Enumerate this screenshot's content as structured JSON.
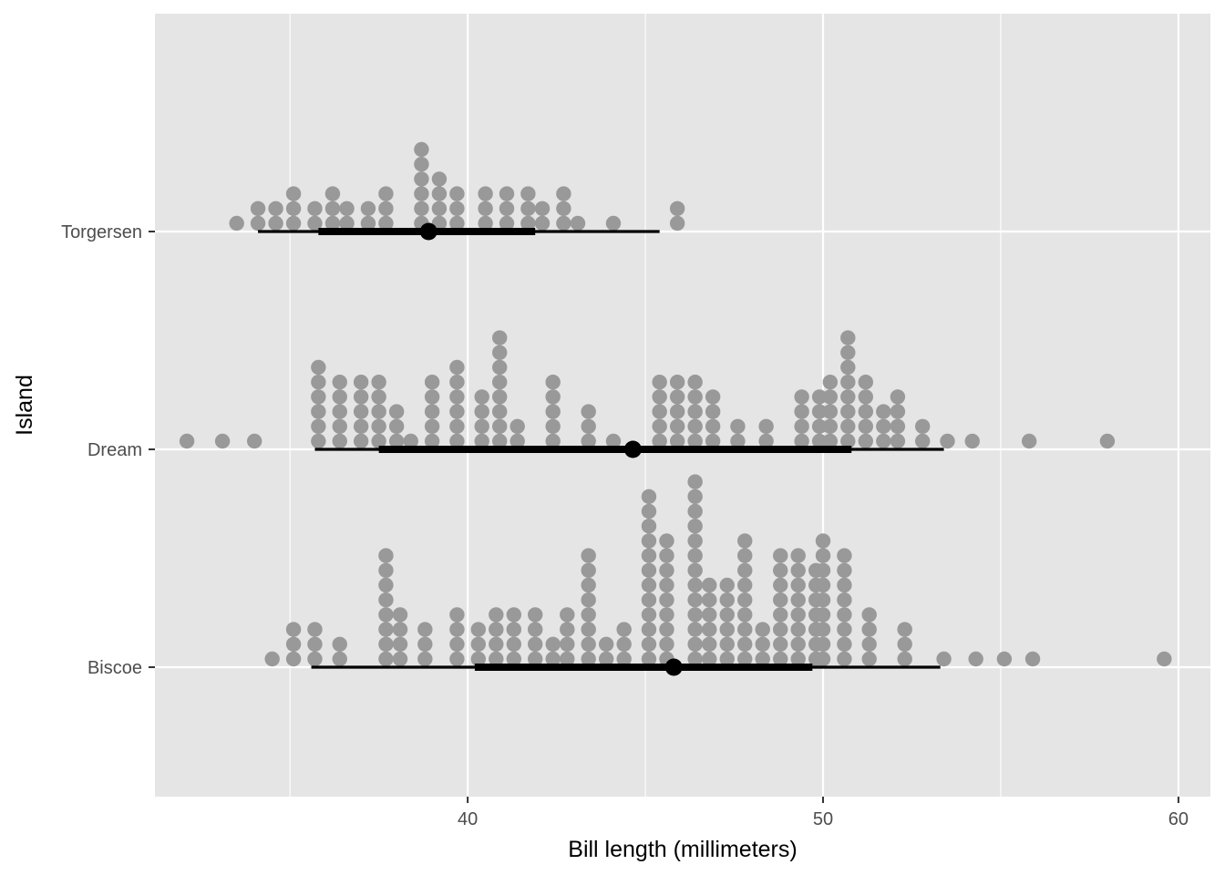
{
  "chart_data": {
    "type": "dotplot",
    "xlabel": "Bill length (millimeters)",
    "ylabel": "Island",
    "xlim": [
      31.2,
      60.9
    ],
    "x_ticks": [
      40,
      50,
      60
    ],
    "y_categories": [
      "Biscoe",
      "Dream",
      "Torgersen"
    ],
    "dot_binwidth": 0.45,
    "grid": true,
    "colors": {
      "panel": "#e5e5e5",
      "grid": "#ffffff",
      "dots": "#999999",
      "summary": "#000000"
    },
    "groups": [
      {
        "island": "Torgersen",
        "summary": {
          "median": 38.9,
          "interval_66": [
            35.8,
            41.9
          ],
          "interval_95": [
            34.1,
            45.4
          ]
        },
        "dots": [
          [
            33.5,
            1
          ],
          [
            34.1,
            2
          ],
          [
            34.6,
            2
          ],
          [
            35.1,
            3
          ],
          [
            35.7,
            2
          ],
          [
            36.2,
            3
          ],
          [
            36.6,
            2
          ],
          [
            37.2,
            2
          ],
          [
            37.7,
            3
          ],
          [
            38.7,
            6
          ],
          [
            39.2,
            4
          ],
          [
            39.7,
            3
          ],
          [
            40.5,
            3
          ],
          [
            41.1,
            3
          ],
          [
            41.7,
            3
          ],
          [
            42.1,
            2
          ],
          [
            42.7,
            3
          ],
          [
            43.1,
            1
          ],
          [
            44.1,
            1
          ],
          [
            45.9,
            2
          ]
        ]
      },
      {
        "island": "Dream",
        "summary": {
          "median": 44.65,
          "interval_66": [
            37.5,
            50.8
          ],
          "interval_95": [
            35.7,
            53.4
          ]
        },
        "dots": [
          [
            32.1,
            1
          ],
          [
            33.1,
            1
          ],
          [
            34.0,
            1
          ],
          [
            35.8,
            6
          ],
          [
            36.4,
            5
          ],
          [
            37.0,
            5
          ],
          [
            37.5,
            5
          ],
          [
            38.0,
            3
          ],
          [
            38.4,
            1
          ],
          [
            39.0,
            5
          ],
          [
            39.7,
            6
          ],
          [
            40.4,
            4
          ],
          [
            40.9,
            8
          ],
          [
            41.4,
            2
          ],
          [
            42.4,
            5
          ],
          [
            43.4,
            3
          ],
          [
            44.1,
            1
          ],
          [
            45.4,
            5
          ],
          [
            45.9,
            5
          ],
          [
            46.4,
            5
          ],
          [
            46.9,
            4
          ],
          [
            47.6,
            2
          ],
          [
            48.4,
            2
          ],
          [
            49.4,
            4
          ],
          [
            49.9,
            4
          ],
          [
            50.2,
            5
          ],
          [
            50.7,
            8
          ],
          [
            51.2,
            5
          ],
          [
            51.7,
            3
          ],
          [
            52.1,
            4
          ],
          [
            52.8,
            2
          ],
          [
            53.5,
            1
          ],
          [
            54.2,
            1
          ],
          [
            55.8,
            1
          ],
          [
            58.0,
            1
          ]
        ]
      },
      {
        "island": "Biscoe",
        "summary": {
          "median": 45.8,
          "interval_66": [
            40.2,
            49.7
          ],
          "interval_95": [
            35.6,
            53.3
          ]
        },
        "dots": [
          [
            34.5,
            1
          ],
          [
            35.1,
            3
          ],
          [
            35.7,
            3
          ],
          [
            36.4,
            2
          ],
          [
            37.7,
            8
          ],
          [
            38.1,
            4
          ],
          [
            38.8,
            3
          ],
          [
            39.7,
            4
          ],
          [
            40.3,
            3
          ],
          [
            40.8,
            4
          ],
          [
            41.3,
            4
          ],
          [
            41.9,
            4
          ],
          [
            42.4,
            2
          ],
          [
            42.8,
            4
          ],
          [
            43.4,
            8
          ],
          [
            43.9,
            2
          ],
          [
            44.4,
            3
          ],
          [
            45.1,
            12
          ],
          [
            45.6,
            9
          ],
          [
            46.4,
            13
          ],
          [
            46.8,
            6
          ],
          [
            47.3,
            6
          ],
          [
            47.8,
            9
          ],
          [
            48.3,
            3
          ],
          [
            48.8,
            8
          ],
          [
            49.3,
            8
          ],
          [
            49.8,
            7
          ],
          [
            50.0,
            9
          ],
          [
            50.6,
            8
          ],
          [
            51.3,
            4
          ],
          [
            52.3,
            3
          ],
          [
            53.4,
            1
          ],
          [
            54.3,
            1
          ],
          [
            55.1,
            1
          ],
          [
            55.9,
            1
          ],
          [
            59.6,
            1
          ]
        ]
      }
    ]
  }
}
